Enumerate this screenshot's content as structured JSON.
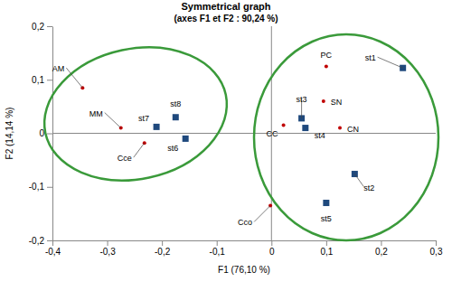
{
  "chart_data": {
    "type": "scatter",
    "title": "Symmetrical graph",
    "subtitle": "(axes F1 et F2 : 90,24 %)",
    "x_label": "F1 (76,10 %)",
    "y_label": "F2 (14,14 %)",
    "xlim": [
      -0.4,
      0.3
    ],
    "ylim": [
      -0.2,
      0.2
    ],
    "xticks": [
      {
        "value": -0.4,
        "label": "-0,4"
      },
      {
        "value": -0.3,
        "label": "-0,3"
      },
      {
        "value": -0.2,
        "label": "-0,2"
      },
      {
        "value": -0.1,
        "label": "-0,1"
      },
      0,
      {
        "value": 0.1,
        "label": "0,1"
      },
      {
        "value": 0.2,
        "label": "0,2"
      },
      {
        "value": 0.3,
        "label": "0,3"
      }
    ],
    "yticks": [
      {
        "value": -0.2,
        "label": "-0,2"
      },
      {
        "value": -0.1,
        "label": "-0,1"
      },
      0,
      {
        "value": 0.1,
        "label": "0,1"
      },
      {
        "value": 0.2,
        "label": "0,2"
      }
    ],
    "grid": false,
    "series": [
      {
        "color": "#c00000",
        "marker": "circle",
        "labels": [
          "AM",
          "MM",
          "Cce",
          "PC",
          "SN",
          "CC",
          "CN",
          "Cco"
        ],
        "x": [
          -0.345,
          -0.275,
          -0.232,
          0.1,
          0.095,
          0.022,
          0.125,
          -0.002
        ],
        "values": [
          0.085,
          0.01,
          -0.018,
          0.125,
          0.06,
          0.015,
          0.01,
          -0.135
        ]
      },
      {
        "color": "#1f497d",
        "marker": "square",
        "labels": [
          "st1",
          "st2",
          "st3",
          "st4",
          "st5",
          "st6",
          "st7",
          "st8"
        ],
        "x": [
          0.24,
          0.152,
          0.055,
          0.062,
          0.1,
          -0.157,
          -0.21,
          -0.175
        ],
        "values": [
          0.122,
          -0.076,
          0.028,
          0.01,
          -0.13,
          -0.01,
          0.012,
          0.03
        ]
      }
    ]
  }
}
